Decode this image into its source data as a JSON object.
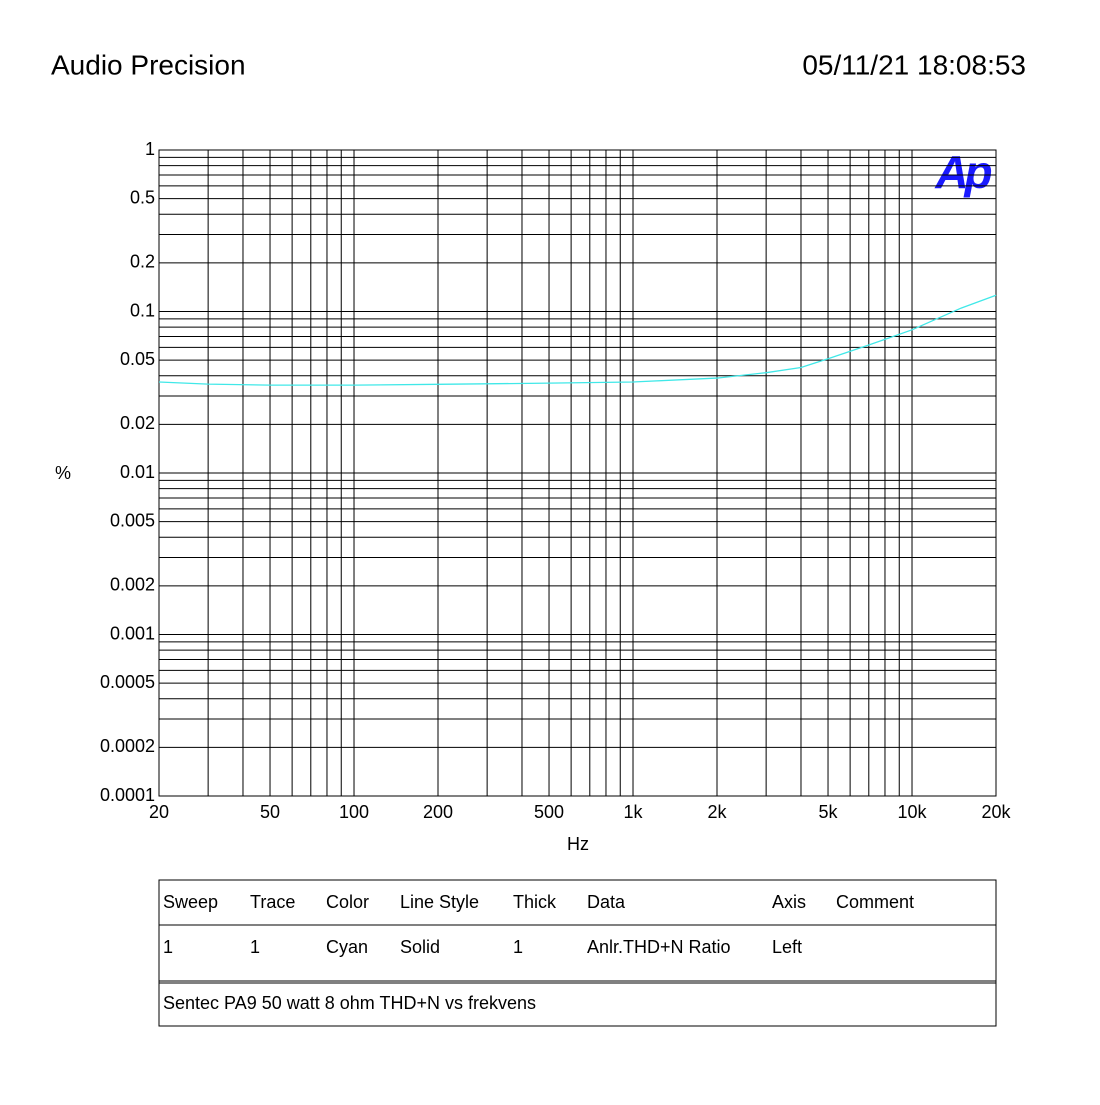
{
  "header": {
    "title": "Audio Precision",
    "timestamp": "05/11/21 18:08:53"
  },
  "chart_data": {
    "type": "line",
    "logo": "Ap",
    "x_label": "Hz",
    "y_label": "%",
    "x": [
      20,
      30,
      50,
      100,
      200,
      500,
      1000,
      2000,
      3000,
      4000,
      5000,
      7000,
      10000,
      15000,
      20000
    ],
    "values": [
      0.0366,
      0.0355,
      0.035,
      0.035,
      0.0354,
      0.036,
      0.0366,
      0.0387,
      0.0418,
      0.045,
      0.051,
      0.062,
      0.077,
      0.105,
      0.126
    ],
    "color": "#40e8e8",
    "xscale": "log",
    "yscale": "log",
    "grid": true,
    "xlim": [
      20,
      20000
    ],
    "ylim": [
      0.0001,
      1
    ],
    "xticks": [
      20,
      50,
      100,
      200,
      500,
      {
        "value": 1000,
        "label": "1k"
      },
      {
        "value": 2000,
        "label": "2k"
      },
      {
        "value": 5000,
        "label": "5k"
      },
      {
        "value": 10000,
        "label": "10k"
      },
      {
        "value": 20000,
        "label": "20k"
      }
    ],
    "xminorticks": [
      30,
      40,
      60,
      70,
      80,
      90,
      300,
      400,
      600,
      700,
      800,
      900,
      3000,
      4000,
      6000,
      7000,
      8000,
      9000
    ],
    "yticks": [
      1,
      0.5,
      0.2,
      0.1,
      0.05,
      0.02,
      0.01,
      0.005,
      0.002,
      0.001,
      0.0005,
      0.0002,
      0.0001
    ],
    "yminorticks": [
      0.9,
      0.8,
      0.7,
      0.6,
      0.4,
      0.3,
      0.09,
      0.08,
      0.07,
      0.06,
      0.04,
      0.03,
      0.009,
      0.008,
      0.007,
      0.006,
      0.004,
      0.003,
      0.0009,
      0.0008,
      0.0007,
      0.0006,
      0.0004,
      0.0003
    ]
  },
  "legend_table": {
    "columns": [
      "Sweep",
      "Trace",
      "Color",
      "Line Style",
      "Thick",
      "Data",
      "Axis",
      "Comment"
    ],
    "rows": [
      [
        "1",
        "1",
        "Cyan",
        "Solid",
        "1",
        "Anlr.THD+N Ratio",
        "Left"
      ]
    ],
    "comment": "Sentec PA9 50 watt 8 ohm THD+N vs frekvens"
  }
}
